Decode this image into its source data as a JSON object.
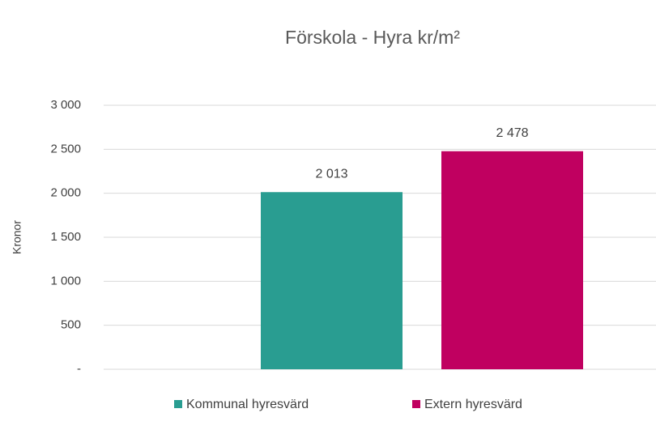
{
  "chart_data": {
    "type": "bar",
    "title": "Förskola - Hyra kr/m²",
    "y_label": "Kronor",
    "categories": [
      null
    ],
    "series": [
      {
        "name": "Kommunal hyresvärd",
        "color": "#299d91",
        "values": [
          2013
        ],
        "value_labels": [
          "2 013"
        ]
      },
      {
        "name": "Extern hyresvärd",
        "color": "#c00060",
        "values": [
          2478
        ],
        "value_labels": [
          "2 478"
        ]
      }
    ],
    "ylim": [
      0,
      3000
    ],
    "yticks": [
      {
        "value": 0,
        "label": "-"
      },
      500,
      {
        "value": 1000,
        "label": "1 000"
      },
      {
        "value": 1500,
        "label": "1 500"
      },
      {
        "value": 2000,
        "label": "2 000"
      },
      {
        "value": 2500,
        "label": "2 500"
      },
      {
        "value": 3000,
        "label": "3 000"
      }
    ],
    "grid": true,
    "legend": "bottom"
  }
}
